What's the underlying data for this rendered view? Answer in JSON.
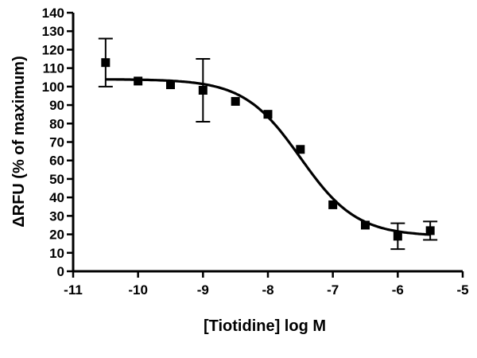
{
  "chart_data": {
    "type": "scatter",
    "title": "",
    "xlabel": "[Tiotidine] log M",
    "ylabel": "ΔRFU (% of maximum)",
    "xlim": [
      -11,
      -5
    ],
    "ylim": [
      0,
      140
    ],
    "x_ticks": [
      -11,
      -10,
      -9,
      -8,
      -7,
      -6,
      -5
    ],
    "y_ticks": [
      0,
      10,
      20,
      30,
      40,
      50,
      60,
      70,
      80,
      90,
      100,
      110,
      120,
      130,
      140
    ],
    "grid": false,
    "legend": "none",
    "points": [
      {
        "x": -10.5,
        "y": 113,
        "err": 13
      },
      {
        "x": -10.0,
        "y": 103,
        "err": 0
      },
      {
        "x": -9.5,
        "y": 101,
        "err": 0
      },
      {
        "x": -9.0,
        "y": 98,
        "err": 17
      },
      {
        "x": -8.5,
        "y": 92,
        "err": 0
      },
      {
        "x": -8.0,
        "y": 85,
        "err": 0
      },
      {
        "x": -7.5,
        "y": 66,
        "err": 0
      },
      {
        "x": -7.0,
        "y": 36,
        "err": 0
      },
      {
        "x": -6.5,
        "y": 25,
        "err": 0
      },
      {
        "x": -6.0,
        "y": 19,
        "err": 7
      },
      {
        "x": -5.5,
        "y": 22,
        "err": 5
      }
    ],
    "fit": {
      "model": "sigmoidal dose-response",
      "top": 104,
      "bottom": 19,
      "log_ic50": -7.5,
      "hill_slope": -1,
      "x_range": [
        -10.5,
        -5.5
      ]
    },
    "colors": {
      "marker": "#000000",
      "line": "#000000",
      "axis": "#000000"
    }
  }
}
